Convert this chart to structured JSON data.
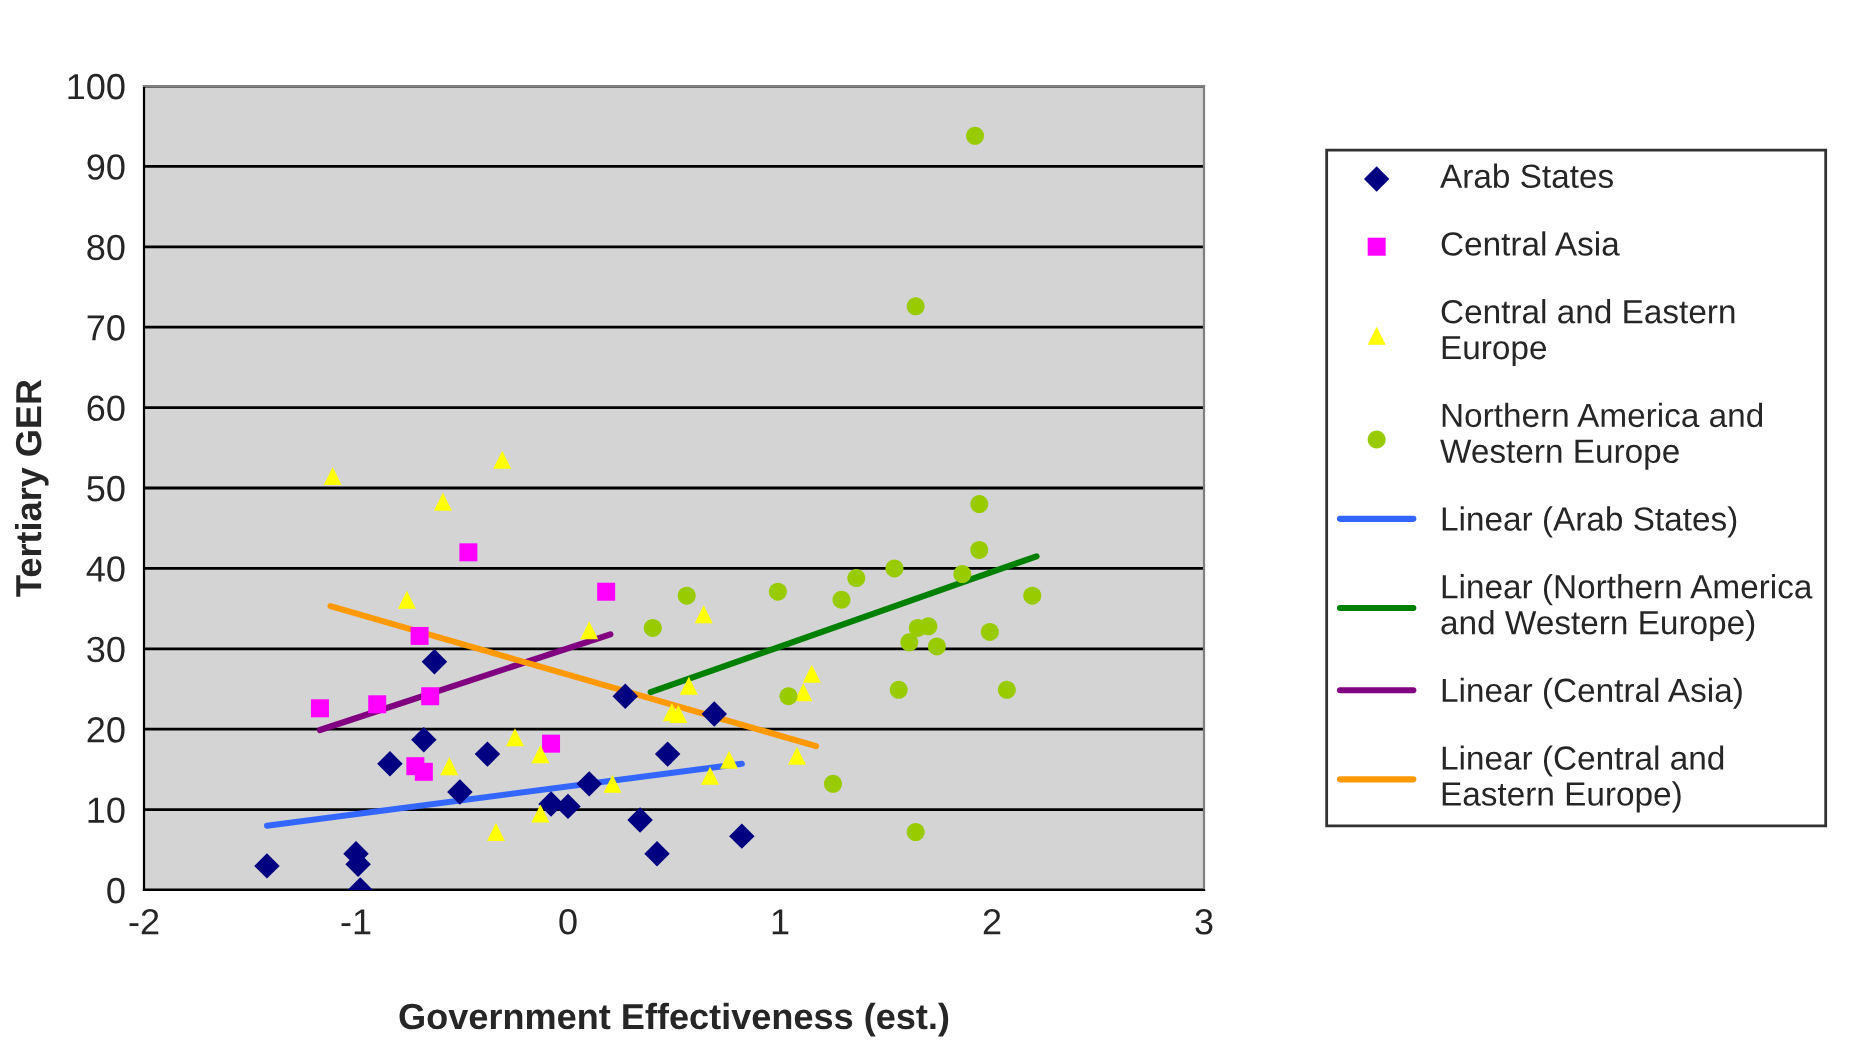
{
  "chart_data": {
    "type": "scatter",
    "xlabel": "Government Effectiveness (est.)",
    "ylabel": "Tertiary GER",
    "xlim": [
      -2,
      3
    ],
    "xticks": [
      -2,
      -1,
      0,
      1,
      2,
      3
    ],
    "ylim": [
      0,
      100
    ],
    "yticks": [
      0,
      10,
      20,
      30,
      40,
      50,
      60,
      70,
      80,
      90,
      100
    ],
    "grid": "y",
    "legend": "right",
    "series": [
      {
        "name": "Arab States",
        "color": "#000080",
        "marker": "diamond",
        "x": [
          -1.42,
          -1.0,
          -0.99,
          -0.98,
          -0.84,
          -0.68,
          -0.63,
          -0.51,
          -0.38,
          -0.08,
          0.0,
          0.1,
          0.27,
          0.34,
          0.42,
          0.47,
          0.69,
          0.82
        ],
        "values": [
          3,
          4.5,
          3.2,
          0,
          15.7,
          18.7,
          28.4,
          12.2,
          16.9,
          10.7,
          10.4,
          13.2,
          24.1,
          8.7,
          4.5,
          16.9,
          21.9,
          6.7
        ]
      },
      {
        "name": "Central Asia",
        "color": "#ff00ff",
        "marker": "square",
        "x": [
          -1.17,
          -0.9,
          -0.7,
          -0.65,
          -0.47,
          -0.72,
          -0.68,
          -0.08,
          0.18
        ],
        "values": [
          22.6,
          23.1,
          31.6,
          24.1,
          42.0,
          15.4,
          14.7,
          18.2,
          37.1
        ]
      },
      {
        "name": "Central and Eastern Europe",
        "color": "#ffff00",
        "marker": "triangle",
        "x": [
          -1.11,
          -0.31,
          -0.59,
          -0.76,
          -0.56,
          -0.34,
          -0.13,
          -0.13,
          -0.25,
          0.1,
          0.21,
          0.57,
          0.49,
          0.52,
          0.64,
          0.67,
          0.76,
          1.08,
          1.11,
          1.15
        ],
        "values": [
          51.5,
          53.5,
          48.3,
          36.1,
          15.4,
          7.2,
          16.9,
          9.5,
          19,
          32.3,
          13.2,
          25.4,
          22.1,
          21.9,
          34.3,
          14.2,
          16.2,
          16.7,
          24.6,
          26.9
        ]
      },
      {
        "name": "Northern America and Western Europe",
        "color": "#99cc00",
        "marker": "circle",
        "x": [
          0.4,
          0.56,
          0.99,
          1.04,
          1.25,
          1.29,
          1.36,
          1.54,
          1.56,
          1.92,
          1.64,
          1.94,
          1.94,
          1.86,
          2.19,
          1.99,
          1.65,
          1.7,
          1.61,
          1.74,
          2.07,
          1.64
        ],
        "values": [
          32.6,
          36.6,
          37.1,
          24.1,
          13.2,
          36.1,
          38.8,
          40.0,
          24.9,
          93.8,
          72.6,
          48.0,
          42.3,
          39.3,
          36.6,
          32.1,
          32.6,
          32.8,
          30.8,
          30.3,
          24.9,
          7.2
        ]
      },
      {
        "name": "Linear (Arab States)",
        "type": "line",
        "color": "#3366ff",
        "marker": "none",
        "x": [
          -1.42,
          0.82
        ],
        "values": [
          8.0,
          15.7
        ]
      },
      {
        "name": "Linear (Northern America and Western Europe)",
        "type": "line",
        "color": "#008000",
        "marker": "none",
        "x": [
          0.39,
          2.21
        ],
        "values": [
          24.6,
          41.5
        ]
      },
      {
        "name": "Linear (Central Asia)",
        "type": "line",
        "color": "#800080",
        "marker": "none",
        "x": [
          -1.17,
          0.2
        ],
        "values": [
          19.9,
          31.8
        ]
      },
      {
        "name": "Linear (Central and Eastern Europe)",
        "type": "line",
        "color": "#ff9900",
        "marker": "none",
        "x": [
          -1.12,
          1.17
        ],
        "values": [
          35.3,
          17.9
        ]
      }
    ]
  }
}
